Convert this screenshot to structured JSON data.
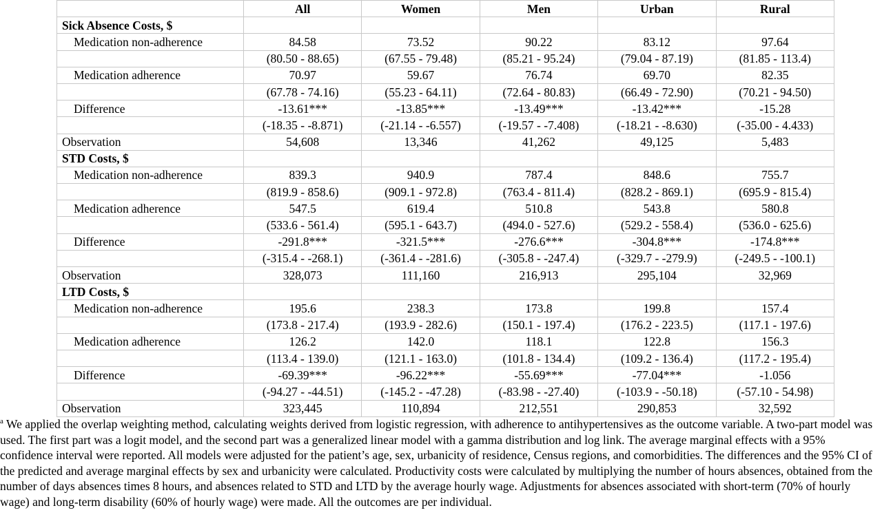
{
  "columns": [
    "All",
    "Women",
    "Men",
    "Urban",
    "Rural"
  ],
  "sections": [
    {
      "title": "Sick Absence Costs, $",
      "rows": [
        {
          "label": "Medication non-adherence",
          "values": [
            "84.58",
            "73.52",
            "90.22",
            "83.12",
            "97.64"
          ],
          "ci": [
            "(80.50 - 88.65)",
            "(67.55 - 79.48)",
            "(85.21 - 95.24)",
            "(79.04 - 87.19)",
            "(81.85 - 113.4)"
          ]
        },
        {
          "label": "Medication adherence",
          "values": [
            "70.97",
            "59.67",
            "76.74",
            "69.70",
            "82.35"
          ],
          "ci": [
            "(67.78 - 74.16)",
            "(55.23 - 64.11)",
            "(72.64 - 80.83)",
            "(66.49 - 72.90)",
            "(70.21 - 94.50)"
          ]
        },
        {
          "label": "Difference",
          "values": [
            "-13.61***",
            "-13.85***",
            "-13.49***",
            "-13.42***",
            "-15.28"
          ],
          "ci": [
            "(-18.35 - -8.871)",
            "(-21.14 - -6.557)",
            "(-19.57 - -7.408)",
            "(-18.21 - -8.630)",
            "(-35.00 - 4.433)"
          ]
        }
      ],
      "observation": {
        "label": "Observation",
        "values": [
          "54,608",
          "13,346",
          "41,262",
          "49,125",
          "5,483"
        ]
      }
    },
    {
      "title": "STD Costs, $",
      "rows": [
        {
          "label": "Medication non-adherence",
          "values": [
            "839.3",
            "940.9",
            "787.4",
            "848.6",
            "755.7"
          ],
          "ci": [
            "(819.9 - 858.6)",
            "(909.1 - 972.8)",
            "(763.4 - 811.4)",
            "(828.2 - 869.1)",
            "(695.9 - 815.4)"
          ]
        },
        {
          "label": "Medication adherence",
          "values": [
            "547.5",
            "619.4",
            "510.8",
            "543.8",
            "580.8"
          ],
          "ci": [
            "(533.6 - 561.4)",
            "(595.1 - 643.7)",
            "(494.0 - 527.6)",
            "(529.2 - 558.4)",
            "(536.0 - 625.6)"
          ]
        },
        {
          "label": "Difference",
          "values": [
            "-291.8***",
            "-321.5***",
            "-276.6***",
            "-304.8***",
            "-174.8***"
          ],
          "ci": [
            "(-315.4 - -268.1)",
            "(-361.4 - -281.6)",
            "(-305.8 - -247.4)",
            "(-329.7 - -279.9)",
            "(-249.5 - -100.1)"
          ]
        }
      ],
      "observation": {
        "label": "Observation",
        "values": [
          "328,073",
          "111,160",
          "216,913",
          "295,104",
          "32,969"
        ]
      }
    },
    {
      "title": "LTD Costs, $",
      "rows": [
        {
          "label": "Medication non-adherence",
          "values": [
            "195.6",
            "238.3",
            "173.8",
            "199.8",
            "157.4"
          ],
          "ci": [
            "(173.8 - 217.4)",
            "(193.9 - 282.6)",
            "(150.1 - 197.4)",
            "(176.2 - 223.5)",
            "(117.1 - 197.6)"
          ]
        },
        {
          "label": "Medication adherence",
          "values": [
            "126.2",
            "142.0",
            "118.1",
            "122.8",
            "156.3"
          ],
          "ci": [
            "(113.4 - 139.0)",
            "(121.1 - 163.0)",
            "(101.8 - 134.4)",
            "(109.2 - 136.4)",
            "(117.2 - 195.4)"
          ]
        },
        {
          "label": "Difference",
          "values": [
            "-69.39***",
            "-96.22***",
            "-55.69***",
            "-77.04***",
            "-1.056"
          ],
          "ci": [
            "(-94.27 - -44.51)",
            "(-145.2 - -47.28)",
            "(-83.98 - -27.40)",
            "(-103.9 - -50.18)",
            "(-57.10 - 54.98)"
          ]
        }
      ],
      "observation": {
        "label": "Observation",
        "values": [
          "323,445",
          "110,894",
          "212,551",
          "290,853",
          "32,592"
        ]
      }
    }
  ],
  "footnote": {
    "marker": "a",
    "text": " We applied the overlap weighting method, calculating weights derived from logistic regression, with adherence to antihypertensives as the outcome variable. A two-part model was used. The first part was a logit model, and the second part was a generalized linear model with a gamma distribution and log link. The average marginal effects with a 95% confidence interval were reported. All models were adjusted for the patient’s age, sex, urbanicity of residence, Census regions, and comorbidities. The differences and the 95% CI of the predicted and average marginal effects by sex and urbanicity were calculated. Productivity costs were calculated by multiplying the number of hours absences, obtained from the number of days absences times 8 hours, and absences related to STD and LTD by the average hourly wage. Adjustments for absences associated with short-term (70% of hourly wage) and long-term disability (60% of hourly wage) were made. All the outcomes are per individual."
  }
}
